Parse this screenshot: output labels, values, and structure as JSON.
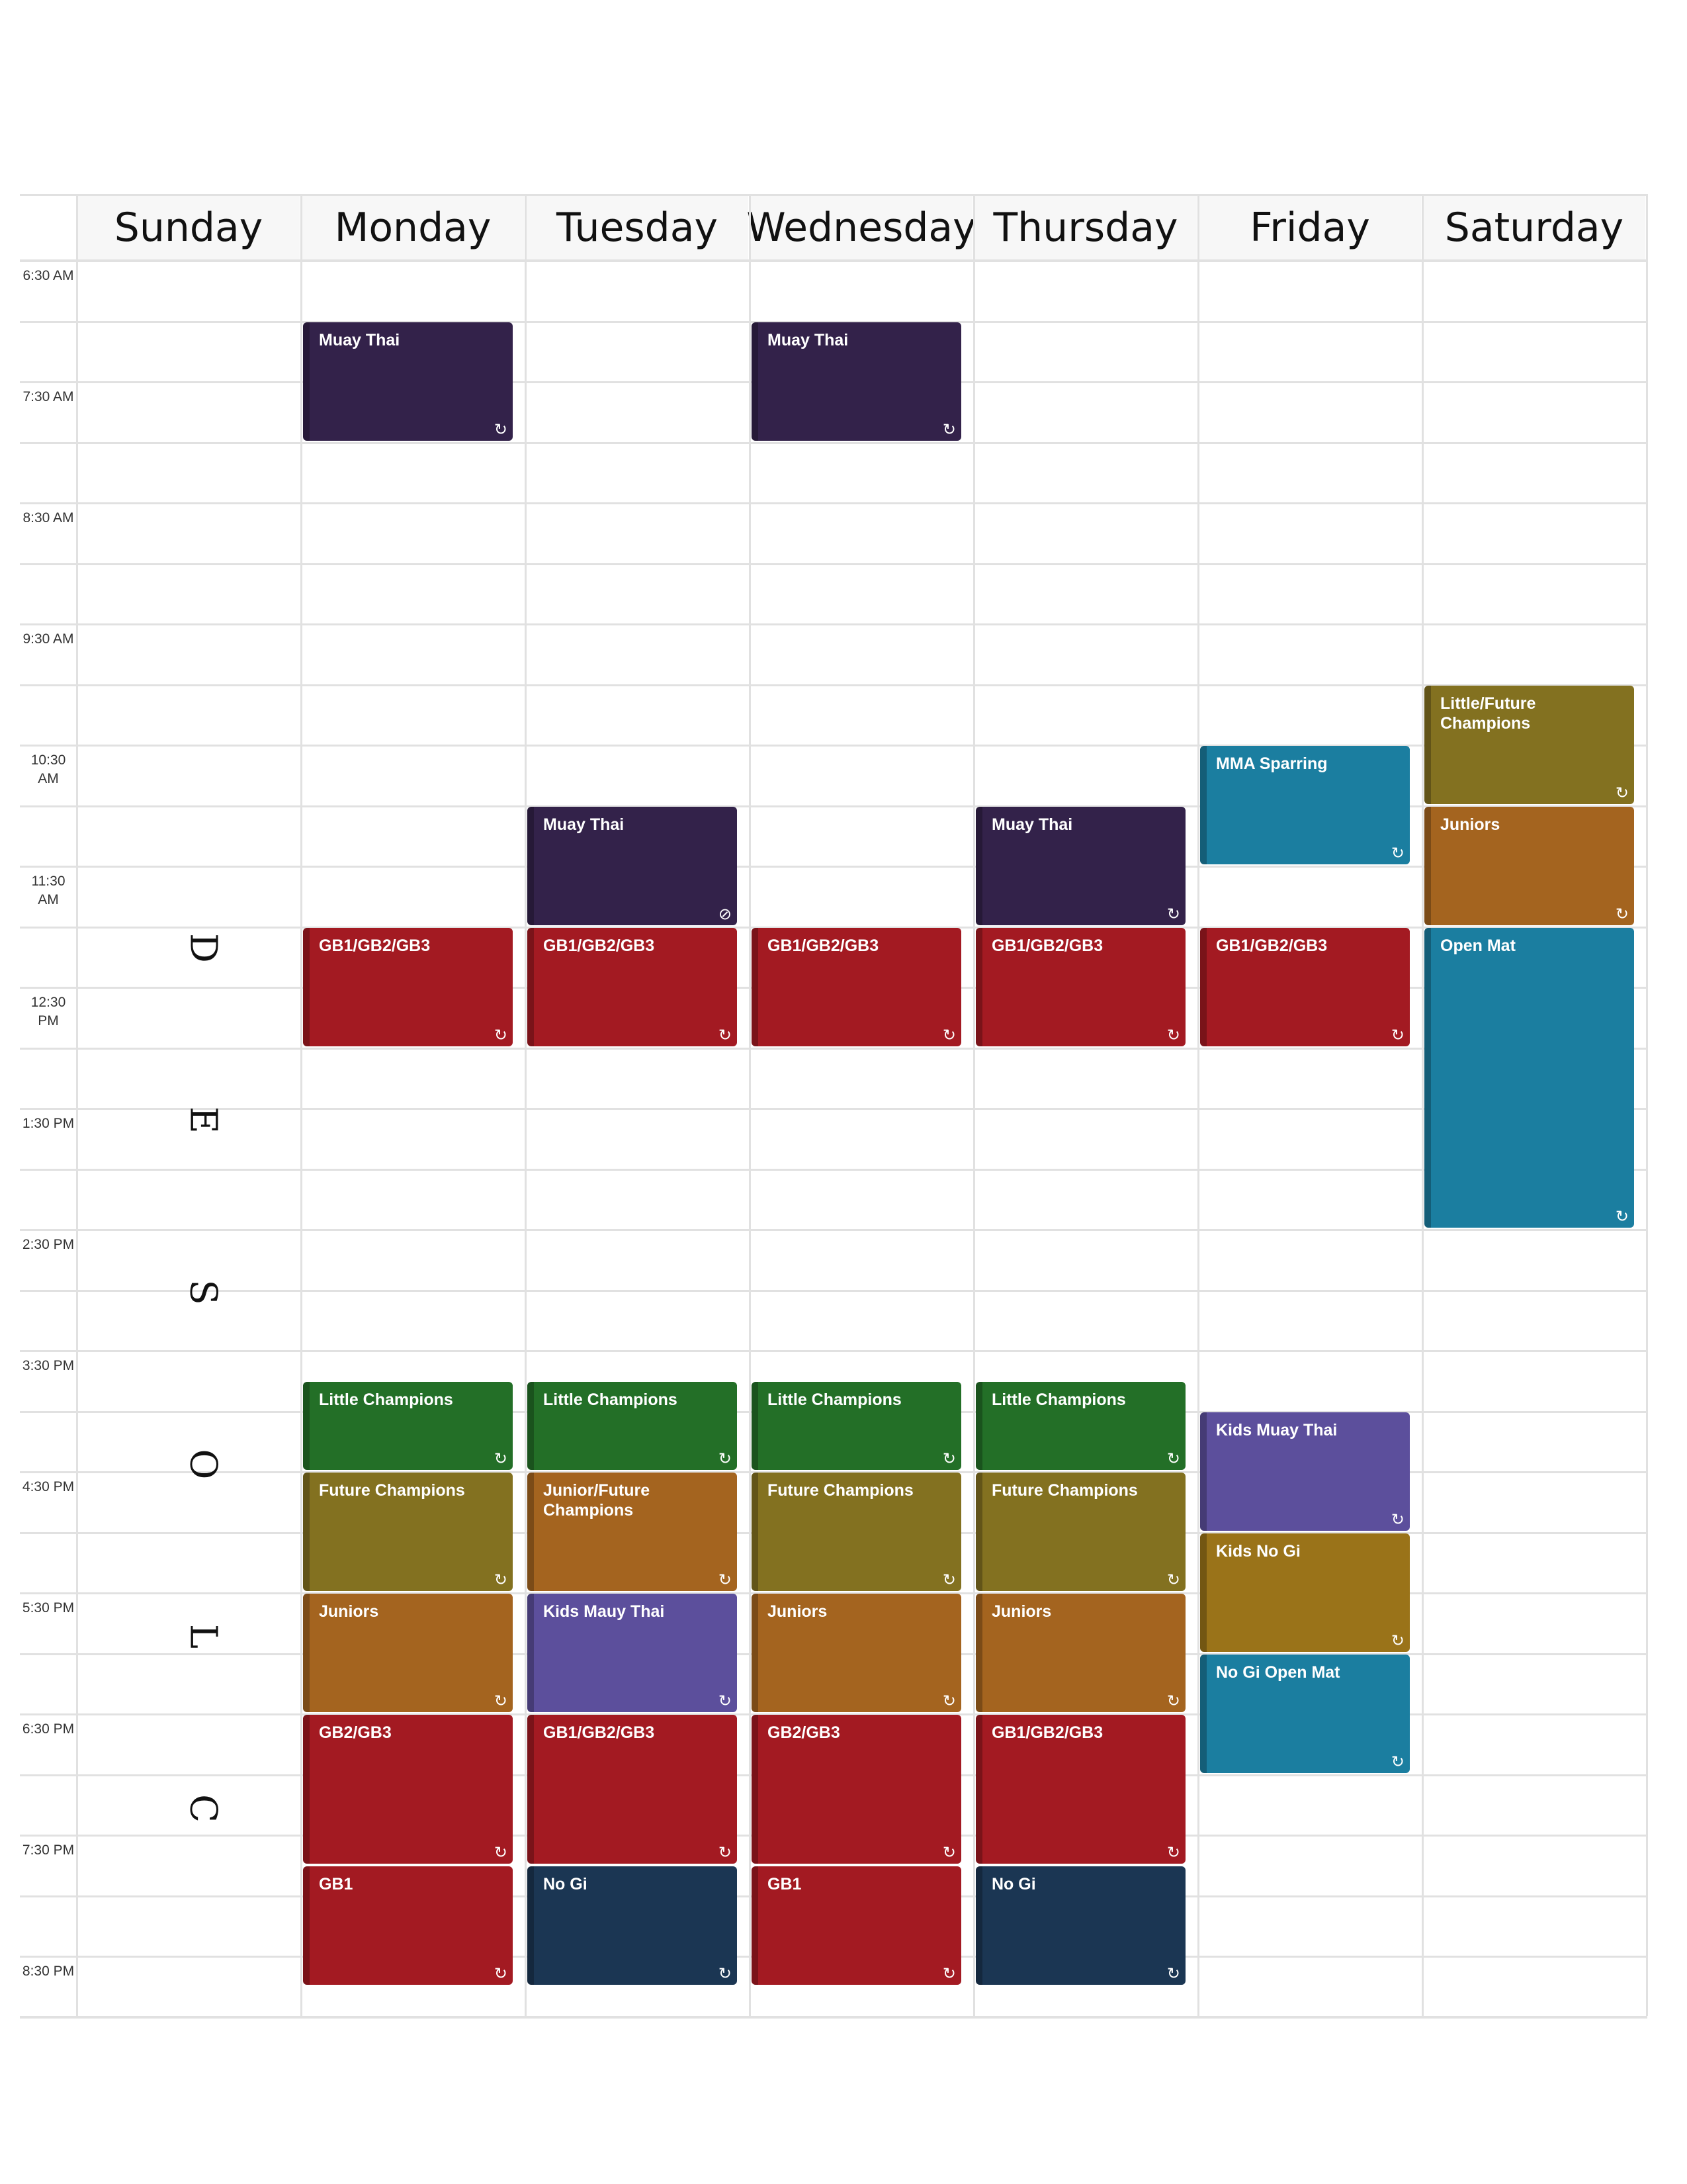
{
  "days": [
    "Sunday",
    "Monday",
    "Tuesday",
    "Wednesday",
    "Thursday",
    "Friday",
    "Saturday"
  ],
  "times": [
    "6:30 AM",
    "7:30 AM",
    "8:30 AM",
    "9:30 AM",
    "10:30 AM",
    "11:30 AM",
    "12:30 PM",
    "1:30 PM",
    "2:30 PM",
    "3:30 PM",
    "4:30 PM",
    "5:30 PM",
    "6:30 PM",
    "7:30 PM",
    "8:30 PM"
  ],
  "closed_letters": [
    "D",
    "E",
    "S",
    "O",
    "L",
    "C"
  ],
  "colors": {
    "purple_dark": "#33224a",
    "red": "#a31a22",
    "teal": "#1b7ea0",
    "olive": "#837120",
    "orange": "#a4641f",
    "green": "#236f27",
    "violet": "#5c4f9c",
    "amber": "#9a7319",
    "navy": "#1b3653"
  },
  "icons": {
    "recurring": "repeat-icon",
    "exception": "recurrence-off-icon"
  },
  "events": [
    {
      "title": "Muay Thai",
      "day": 1,
      "start": "7:00",
      "end": "8:00",
      "color": "purple_dark",
      "icon": "recurring"
    },
    {
      "title": "Muay Thai",
      "day": 3,
      "start": "7:00",
      "end": "8:00",
      "color": "purple_dark",
      "icon": "recurring"
    },
    {
      "title": "Little/Future Champions",
      "day": 6,
      "start": "10:00",
      "end": "11:00",
      "color": "olive",
      "icon": "recurring"
    },
    {
      "title": "MMA Sparring",
      "day": 5,
      "start": "10:30",
      "end": "11:30",
      "color": "teal",
      "icon": "recurring"
    },
    {
      "title": "Muay Thai",
      "day": 2,
      "start": "11:00",
      "end": "12:00",
      "color": "purple_dark",
      "icon": "exception"
    },
    {
      "title": "Muay Thai",
      "day": 4,
      "start": "11:00",
      "end": "12:00",
      "color": "purple_dark",
      "icon": "recurring"
    },
    {
      "title": "Juniors",
      "day": 6,
      "start": "11:00",
      "end": "12:00",
      "color": "orange",
      "icon": "recurring"
    },
    {
      "title": "GB1/GB2/GB3",
      "day": 1,
      "start": "12:00",
      "end": "13:00",
      "color": "red",
      "icon": "recurring"
    },
    {
      "title": "GB1/GB2/GB3",
      "day": 2,
      "start": "12:00",
      "end": "13:00",
      "color": "red",
      "icon": "recurring"
    },
    {
      "title": "GB1/GB2/GB3",
      "day": 3,
      "start": "12:00",
      "end": "13:00",
      "color": "red",
      "icon": "recurring"
    },
    {
      "title": "GB1/GB2/GB3",
      "day": 4,
      "start": "12:00",
      "end": "13:00",
      "color": "red",
      "icon": "recurring"
    },
    {
      "title": "GB1/GB2/GB3",
      "day": 5,
      "start": "12:00",
      "end": "13:00",
      "color": "red",
      "icon": "recurring"
    },
    {
      "title": "Open Mat",
      "day": 6,
      "start": "12:00",
      "end": "14:30",
      "color": "teal",
      "icon": "recurring"
    },
    {
      "title": "Little Champions",
      "day": 1,
      "start": "15:45",
      "end": "16:30",
      "color": "green",
      "icon": "recurring"
    },
    {
      "title": "Little Champions",
      "day": 2,
      "start": "15:45",
      "end": "16:30",
      "color": "green",
      "icon": "recurring"
    },
    {
      "title": "Little Champions",
      "day": 3,
      "start": "15:45",
      "end": "16:30",
      "color": "green",
      "icon": "recurring"
    },
    {
      "title": "Little Champions",
      "day": 4,
      "start": "15:45",
      "end": "16:30",
      "color": "green",
      "icon": "recurring"
    },
    {
      "title": "Kids Muay Thai",
      "day": 5,
      "start": "16:00",
      "end": "17:00",
      "color": "violet",
      "icon": "recurring"
    },
    {
      "title": "Future Champions",
      "day": 1,
      "start": "16:30",
      "end": "17:30",
      "color": "olive",
      "icon": "recurring"
    },
    {
      "title": "Junior/Future Champions",
      "day": 2,
      "start": "16:30",
      "end": "17:30",
      "color": "orange",
      "icon": "recurring"
    },
    {
      "title": "Future Champions",
      "day": 3,
      "start": "16:30",
      "end": "17:30",
      "color": "olive",
      "icon": "recurring"
    },
    {
      "title": "Future Champions",
      "day": 4,
      "start": "16:30",
      "end": "17:30",
      "color": "olive",
      "icon": "recurring"
    },
    {
      "title": "Kids No Gi",
      "day": 5,
      "start": "17:00",
      "end": "18:00",
      "color": "amber",
      "icon": "recurring"
    },
    {
      "title": "Juniors",
      "day": 1,
      "start": "17:30",
      "end": "18:30",
      "color": "orange",
      "icon": "recurring"
    },
    {
      "title": "Kids Mauy Thai",
      "day": 2,
      "start": "17:30",
      "end": "18:30",
      "color": "violet",
      "icon": "recurring"
    },
    {
      "title": "Juniors",
      "day": 3,
      "start": "17:30",
      "end": "18:30",
      "color": "orange",
      "icon": "recurring"
    },
    {
      "title": "Juniors",
      "day": 4,
      "start": "17:30",
      "end": "18:30",
      "color": "orange",
      "icon": "recurring"
    },
    {
      "title": "No Gi Open Mat",
      "day": 5,
      "start": "18:00",
      "end": "19:00",
      "color": "teal",
      "icon": "recurring"
    },
    {
      "title": "GB2/GB3",
      "day": 1,
      "start": "18:30",
      "end": "19:45",
      "color": "red",
      "icon": "recurring"
    },
    {
      "title": "GB1/GB2/GB3",
      "day": 2,
      "start": "18:30",
      "end": "19:45",
      "color": "red",
      "icon": "recurring"
    },
    {
      "title": "GB2/GB3",
      "day": 3,
      "start": "18:30",
      "end": "19:45",
      "color": "red",
      "icon": "recurring"
    },
    {
      "title": "GB1/GB2/GB3",
      "day": 4,
      "start": "18:30",
      "end": "19:45",
      "color": "red",
      "icon": "recurring"
    },
    {
      "title": "GB1",
      "day": 1,
      "start": "19:45",
      "end": "20:45",
      "color": "red",
      "icon": "recurring"
    },
    {
      "title": "No Gi",
      "day": 2,
      "start": "19:45",
      "end": "20:45",
      "color": "navy",
      "icon": "recurring"
    },
    {
      "title": "GB1",
      "day": 3,
      "start": "19:45",
      "end": "20:45",
      "color": "red",
      "icon": "recurring"
    },
    {
      "title": "No Gi",
      "day": 4,
      "start": "19:45",
      "end": "20:45",
      "color": "navy",
      "icon": "recurring"
    }
  ]
}
